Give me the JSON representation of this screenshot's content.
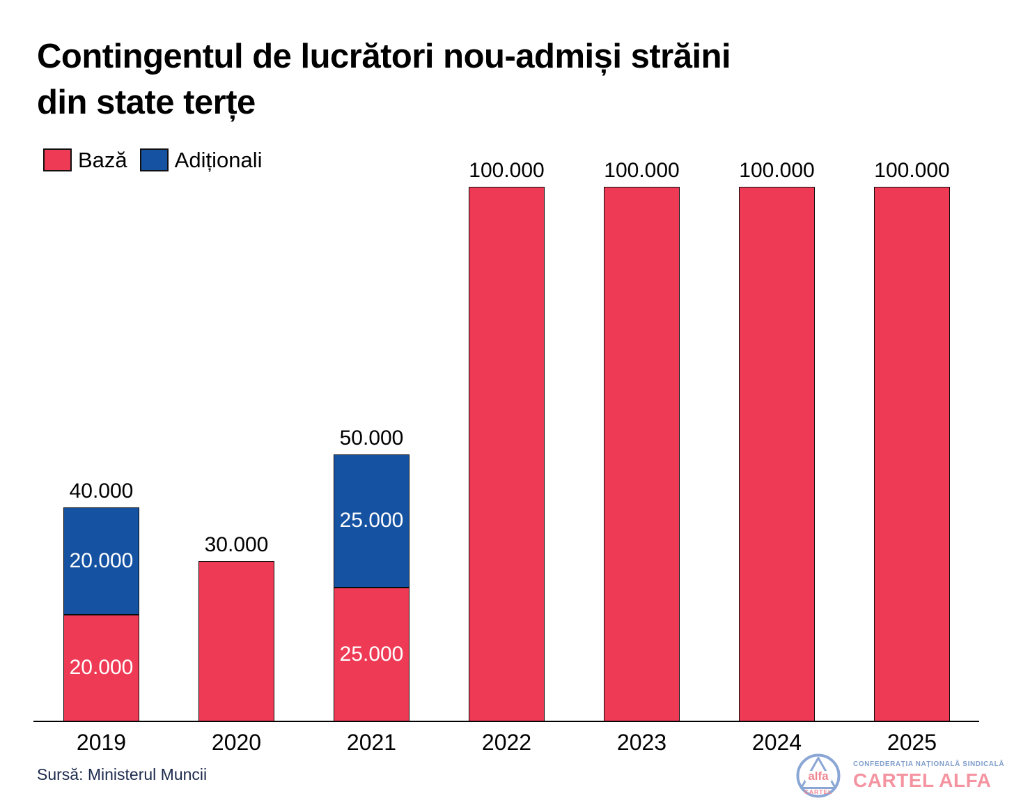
{
  "title": "Contingentul de lucrători nou-admiși străini din state terțe",
  "title_lines": [
    "Contingentul de lucrători nou-admiși străini",
    "din state terțe"
  ],
  "source": "Sursă: Ministerul Muncii",
  "logo": {
    "alfa": "alfa",
    "cartel": "CARTEL",
    "org_line": "CONFEDERAȚIA NAȚIONALĂ SINDICALĂ",
    "brand": "CARTEL ALFA",
    "blue": "#8aa6d4",
    "pink": "#f08793"
  },
  "chart_data": {
    "type": "bar",
    "stacked": true,
    "title": "Contingentul de lucrători nou-admiși străini din state terțe",
    "xlabel": "",
    "ylabel": "",
    "ylim": [
      0,
      100000
    ],
    "grid": false,
    "legend_position": "top-left",
    "categories": [
      "2019",
      "2020",
      "2021",
      "2022",
      "2023",
      "2024",
      "2025"
    ],
    "series": [
      {
        "name": "Bază",
        "key": "baza",
        "color": "#ee3a55",
        "values": [
          20000,
          30000,
          25000,
          100000,
          100000,
          100000,
          100000
        ]
      },
      {
        "name": "Adiționali",
        "key": "aditionali",
        "color": "#1552a2",
        "values": [
          20000,
          0,
          25000,
          0,
          0,
          0,
          0
        ]
      }
    ],
    "totals": [
      40000,
      30000,
      50000,
      100000,
      100000,
      100000,
      100000
    ],
    "total_labels": [
      "40.000",
      "30.000",
      "50.000",
      "100.000",
      "100.000",
      "100.000",
      "100.000"
    ],
    "segment_labels": [
      {
        "baza": "20.000",
        "aditionali": "20.000"
      },
      null,
      {
        "baza": "25.000",
        "aditionali": "25.000"
      },
      null,
      null,
      null,
      null
    ]
  }
}
